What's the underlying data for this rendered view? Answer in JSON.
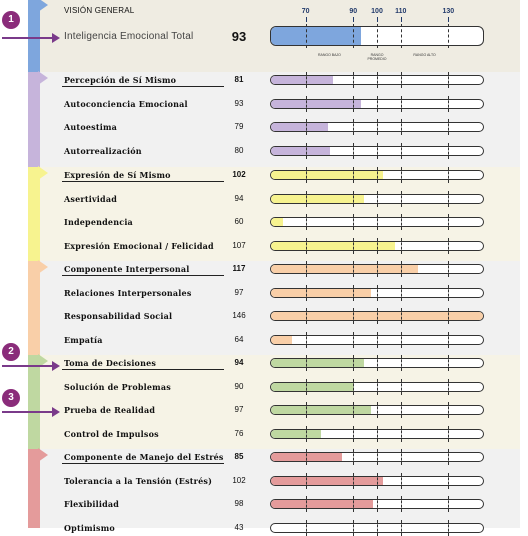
{
  "header": {
    "title": "VISIÓN GENERAL",
    "total_label": "Inteligencia Emocional Total",
    "total_score": "93",
    "range_labels": [
      "RANGO BAJO",
      "RANGO PROMEDIO",
      "RANGO ALTO"
    ]
  },
  "markers": [
    "1",
    "2",
    "3"
  ],
  "colors": {
    "total": "#7ea6dd",
    "self_perception": "#c6b4db",
    "self_expression": "#f7f38f",
    "interpersonal": "#f9cfa8",
    "decision": "#bfd8a1",
    "stress": "#e49b9b",
    "arrow": "#7a3a8a",
    "axis": "#223a6a"
  },
  "chart_data": {
    "type": "bar",
    "title": "VISIÓN GENERAL",
    "x_ticks": [
      70,
      90,
      100,
      110,
      130
    ],
    "xlim": [
      55,
      145
    ],
    "total": {
      "name": "Inteligencia Emocional Total",
      "value": 93
    },
    "groups": [
      {
        "name": "Percepción de Sí Mismo",
        "value": 81,
        "color_key": "self_perception",
        "items": [
          {
            "name": "Autoconciencia Emocional",
            "value": 93
          },
          {
            "name": "Autoestima",
            "value": 79
          },
          {
            "name": "Autorrealización",
            "value": 80
          }
        ]
      },
      {
        "name": "Expresión de Sí Mismo",
        "value": 102,
        "color_key": "self_expression",
        "items": [
          {
            "name": "Asertividad",
            "value": 94
          },
          {
            "name": "Independencia",
            "value": 60
          },
          {
            "name": "Expresión Emocional / Felicidad",
            "value": 107
          }
        ]
      },
      {
        "name": "Componente Interpersonal",
        "value": 117,
        "color_key": "interpersonal",
        "items": [
          {
            "name": "Relaciones Interpersonales",
            "value": 97
          },
          {
            "name": "Responsabilidad Social",
            "value": 146
          },
          {
            "name": "Empatía",
            "value": 64
          }
        ]
      },
      {
        "name": "Toma de Decisiones",
        "value": 94,
        "color_key": "decision",
        "items": [
          {
            "name": "Solución de Problemas",
            "value": 90
          },
          {
            "name": "Prueba de Realidad",
            "value": 97
          },
          {
            "name": "Control de Impulsos",
            "value": 76
          }
        ]
      },
      {
        "name": "Componente de Manejo del Estrés",
        "value": 85,
        "color_key": "stress",
        "items": [
          {
            "name": "Tolerancia a la Tensión (Estrés)",
            "value": 102
          },
          {
            "name": "Flexibilidad",
            "value": 98
          },
          {
            "name": "Optimismo",
            "value": 43
          }
        ]
      }
    ]
  }
}
